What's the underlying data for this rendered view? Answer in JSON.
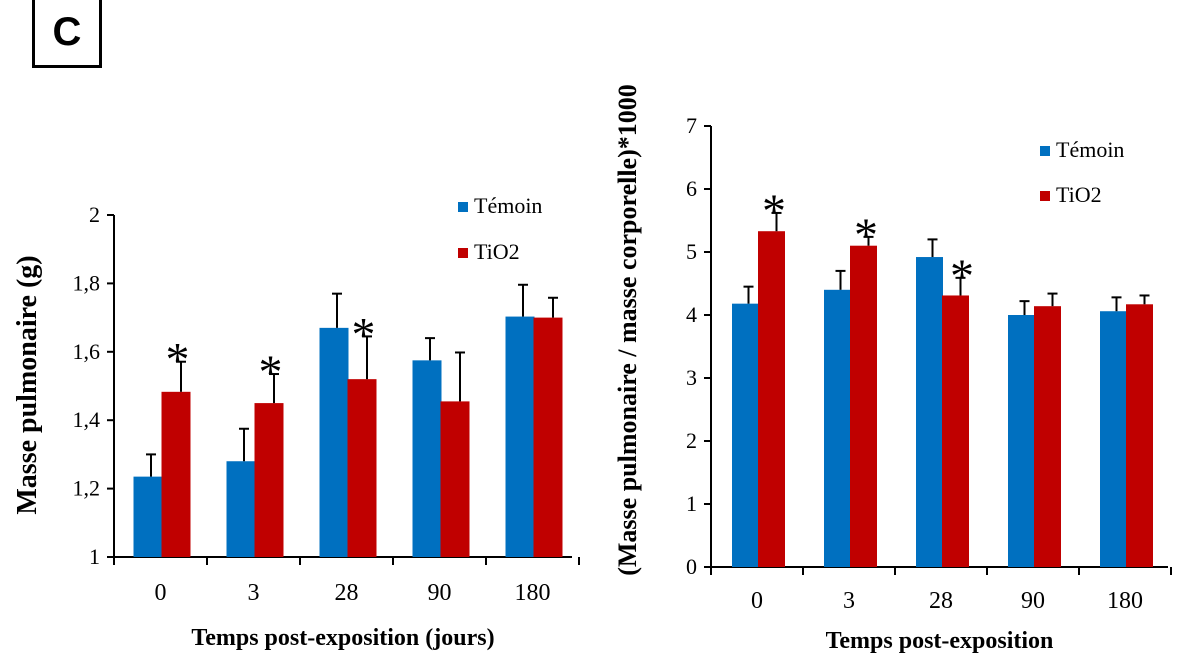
{
  "panel_label": "C",
  "colors": {
    "temoin": "#0070c0",
    "tio2": "#c00000",
    "axis": "#000000"
  },
  "chart_data": [
    {
      "type": "bar",
      "title": "",
      "xlabel": "Temps post-exposition (jours)",
      "ylabel": "Masse pulmonaire (g)",
      "categories": [
        "0",
        "3",
        "28",
        "90",
        "180"
      ],
      "ylim": [
        1,
        2
      ],
      "yticks": [
        1,
        1.2,
        1.4,
        1.6,
        1.8,
        2
      ],
      "ytick_labels": [
        "1",
        "1,2",
        "1,4",
        "1,6",
        "1,8",
        "2"
      ],
      "legend_position": "top-right",
      "grid": false,
      "series": [
        {
          "name": "Témoin",
          "values": [
            1.235,
            1.28,
            1.67,
            1.575,
            1.703
          ],
          "errors": [
            0.065,
            0.095,
            0.1,
            0.065,
            0.093
          ]
        },
        {
          "name": "TiO2",
          "values": [
            1.483,
            1.45,
            1.52,
            1.455,
            1.7
          ],
          "errors": [
            0.088,
            0.085,
            0.125,
            0.143,
            0.058
          ]
        }
      ],
      "significance": {
        "marker": "*",
        "categories": [
          "0",
          "3",
          "28"
        ]
      }
    },
    {
      "type": "bar",
      "title": "",
      "xlabel": "Temps post-exposition",
      "ylabel": "(Masse pulmonaire / masse corporelle)*1000",
      "categories": [
        "0",
        "3",
        "28",
        "90",
        "180"
      ],
      "ylim": [
        0,
        7
      ],
      "yticks": [
        0,
        1,
        2,
        3,
        4,
        5,
        6,
        7
      ],
      "ytick_labels": [
        "0",
        "1",
        "2",
        "3",
        "4",
        "5",
        "6",
        "7"
      ],
      "legend_position": "top-right",
      "grid": false,
      "series": [
        {
          "name": "Témoin",
          "values": [
            4.18,
            4.4,
            4.92,
            4.0,
            4.06
          ],
          "errors": [
            0.27,
            0.3,
            0.28,
            0.22,
            0.22
          ]
        },
        {
          "name": "TiO2",
          "values": [
            5.33,
            5.1,
            4.31,
            4.14,
            4.17
          ],
          "errors": [
            0.29,
            0.14,
            0.28,
            0.2,
            0.14
          ]
        }
      ],
      "significance": {
        "marker": "*",
        "categories": [
          "0",
          "3",
          "28"
        ]
      }
    }
  ]
}
